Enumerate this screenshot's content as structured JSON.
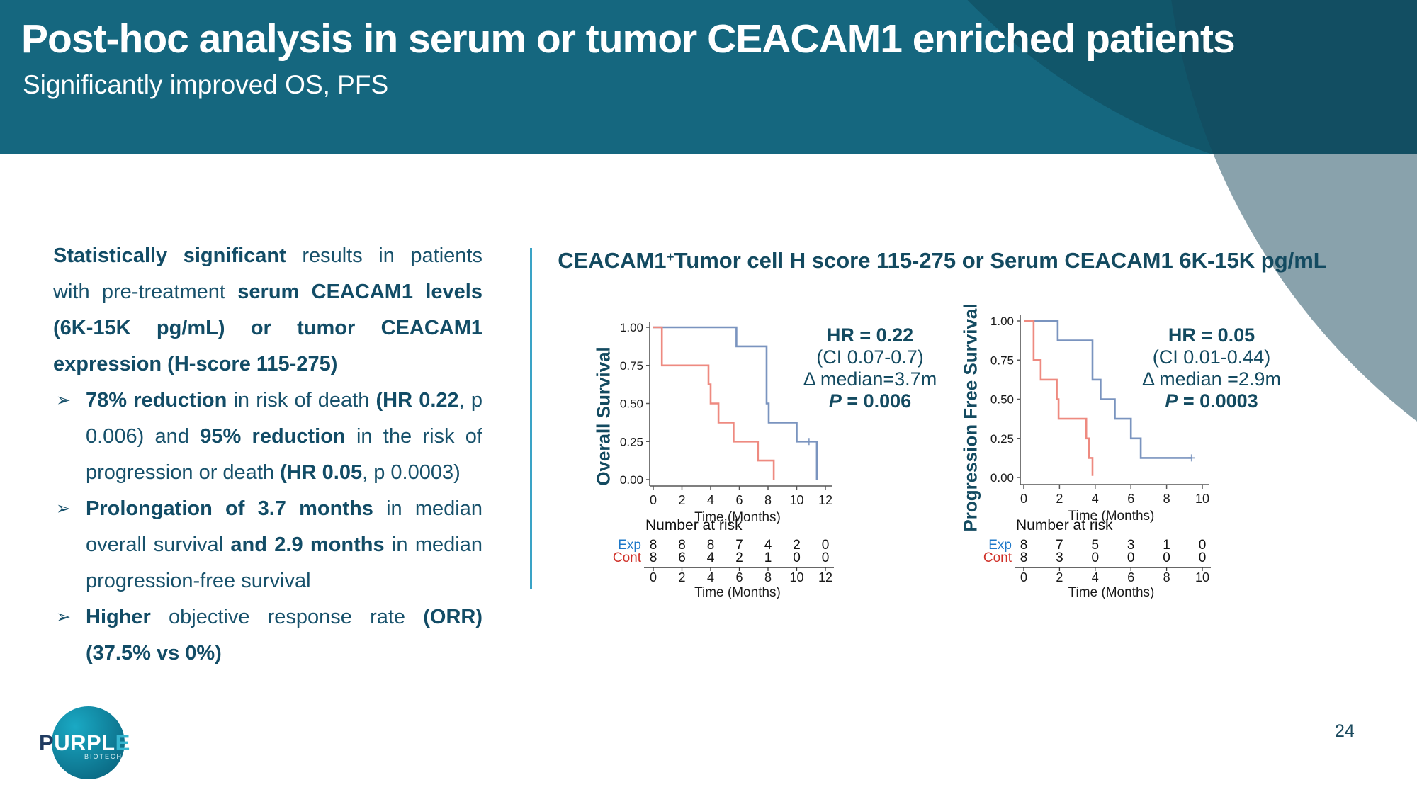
{
  "header": {
    "title": "Post-hoc analysis in serum or tumor CEACAM1 enriched patients",
    "subtitle": "Significantly improved OS, PFS"
  },
  "left_panel": {
    "bullet_glyph": "➢",
    "paragraph": [
      {
        "t": "Statistically significant",
        "b": true
      },
      {
        "t": " results in patients with pre-treatment "
      },
      {
        "t": "serum CEACAM1 levels (6K-15K pg/mL) or tumor CEACAM1 expression (H-score 115-275)",
        "b": true
      }
    ],
    "bullets": [
      [
        {
          "t": "78% reduction",
          "b": true
        },
        {
          "t": " in risk of death "
        },
        {
          "t": "(HR 0.22",
          "b": true
        },
        {
          "t": ", p 0.006) and "
        },
        {
          "t": "95% reduction",
          "b": true
        },
        {
          "t": " in the risk of progression or death "
        },
        {
          "t": "(HR 0.05",
          "b": true
        },
        {
          "t": ", p 0.0003)"
        }
      ],
      [
        {
          "t": "Prolongation of 3.7 months",
          "b": true
        },
        {
          "t": " in median overall survival "
        },
        {
          "t": "and 2.9 months",
          "b": true
        },
        {
          "t": " in median progression-free survival"
        }
      ],
      [
        {
          "t": "Higher",
          "b": true
        },
        {
          "t": " objective response rate "
        },
        {
          "t": "(ORR) (37.5% vs 0%)",
          "b": true
        }
      ]
    ]
  },
  "charts_header": {
    "prefix": "CEACAM1",
    "sup": "+",
    "rest": "Tumor cell H score 115-275 or Serum CEACAM1 6K-15K pg/mL"
  },
  "colors": {
    "header_teal": "#15677f",
    "body_text": "#17516b",
    "annotation_text": "#134a60",
    "divider": "#3aa3c6",
    "curve_exp": "#7a94bf",
    "curve_cont": "#ee8a80",
    "risk_exp_label": "#1e78c8",
    "risk_cont_label": "#cf2f27",
    "axis": "#555555",
    "axis_text": "#1a1a1a"
  },
  "chart_data": [
    {
      "type": "line",
      "subtype": "kaplan-meier-step",
      "ylabel": "Overall Survival",
      "xlabel": "Time (Months)",
      "xlim": [
        0,
        12
      ],
      "xticks": [
        0,
        2,
        4,
        6,
        8,
        10,
        12
      ],
      "ylim": [
        0,
        1
      ],
      "yticks": [
        "0.00",
        "0.25",
        "0.50",
        "0.75",
        "1.00"
      ],
      "grid": false,
      "series": [
        {
          "name": "Exp",
          "color": "#7a94bf",
          "points": [
            [
              0,
              1
            ],
            [
              5.8,
              1
            ],
            [
              5.8,
              0.875
            ],
            [
              7.9,
              0.875
            ],
            [
              7.9,
              0.5
            ],
            [
              8.05,
              0.5
            ],
            [
              8.05,
              0.375
            ],
            [
              10,
              0.375
            ],
            [
              10,
              0.25
            ],
            [
              11.4,
              0.25
            ],
            [
              11.4,
              0
            ]
          ],
          "censor_marks": [
            [
              10.85,
              0.25
            ]
          ]
        },
        {
          "name": "Cont",
          "color": "#ee8a80",
          "points": [
            [
              0,
              1
            ],
            [
              0.6,
              1
            ],
            [
              0.6,
              0.75
            ],
            [
              3.85,
              0.75
            ],
            [
              3.85,
              0.625
            ],
            [
              4.0,
              0.625
            ],
            [
              4.0,
              0.5
            ],
            [
              4.55,
              0.5
            ],
            [
              4.55,
              0.375
            ],
            [
              5.6,
              0.375
            ],
            [
              5.6,
              0.25
            ],
            [
              7.3,
              0.25
            ],
            [
              7.3,
              0.125
            ],
            [
              8.4,
              0.125
            ],
            [
              8.4,
              0
            ]
          ],
          "censor_marks": []
        }
      ],
      "annotation": [
        {
          "text": "HR = 0.22",
          "bold": true
        },
        {
          "text": "(CI 0.07-0.7)"
        },
        {
          "text": "Δ median=3.7m"
        },
        {
          "italic_lead": "P",
          "text": " = 0.006",
          "bold": true
        }
      ],
      "number_at_risk": {
        "label": "Number at risk",
        "xlabel": "Time (Months)",
        "xticks": [
          0,
          2,
          4,
          6,
          8,
          10,
          12
        ],
        "rows": [
          {
            "name": "Exp",
            "color": "#1e78c8",
            "values": [
              8,
              8,
              8,
              7,
              4,
              2,
              0
            ]
          },
          {
            "name": "Cont",
            "color": "#cf2f27",
            "values": [
              8,
              6,
              4,
              2,
              1,
              0,
              0
            ]
          }
        ]
      }
    },
    {
      "type": "line",
      "subtype": "kaplan-meier-step",
      "ylabel": "Progression Free Survival",
      "xlabel": "Time (Months)",
      "xlim": [
        0,
        10
      ],
      "xticks": [
        0,
        2,
        4,
        6,
        8,
        10
      ],
      "ylim": [
        0,
        1
      ],
      "yticks": [
        "0.00",
        "0.25",
        "0.50",
        "0.75",
        "1.00"
      ],
      "grid": false,
      "series": [
        {
          "name": "Exp",
          "color": "#7a94bf",
          "points": [
            [
              0,
              1
            ],
            [
              1.9,
              1
            ],
            [
              1.9,
              0.875
            ],
            [
              3.85,
              0.875
            ],
            [
              3.85,
              0.625
            ],
            [
              4.3,
              0.625
            ],
            [
              4.3,
              0.5
            ],
            [
              5.1,
              0.5
            ],
            [
              5.1,
              0.375
            ],
            [
              6.0,
              0.375
            ],
            [
              6.0,
              0.25
            ],
            [
              6.55,
              0.25
            ],
            [
              6.55,
              0.125
            ],
            [
              9.4,
              0.125
            ]
          ],
          "censor_marks": [
            [
              9.4,
              0.125
            ]
          ]
        },
        {
          "name": "Cont",
          "color": "#ee8a80",
          "points": [
            [
              0,
              1
            ],
            [
              0.55,
              1
            ],
            [
              0.55,
              0.75
            ],
            [
              0.95,
              0.75
            ],
            [
              0.95,
              0.625
            ],
            [
              1.85,
              0.625
            ],
            [
              1.85,
              0.5
            ],
            [
              1.95,
              0.5
            ],
            [
              1.95,
              0.375
            ],
            [
              3.5,
              0.375
            ],
            [
              3.5,
              0.25
            ],
            [
              3.65,
              0.25
            ],
            [
              3.65,
              0.125
            ],
            [
              3.85,
              0.125
            ],
            [
              3.85,
              0.01
            ]
          ],
          "censor_marks": []
        }
      ],
      "annotation": [
        {
          "text": "HR = 0.05",
          "bold": true
        },
        {
          "text": "(CI 0.01-0.44)"
        },
        {
          "text": "Δ median =2.9m"
        },
        {
          "italic_lead": "P",
          "text": " = 0.0003",
          "bold": true
        }
      ],
      "number_at_risk": {
        "label": "Number at risk",
        "xlabel": "Time (Months)",
        "xticks": [
          0,
          2,
          4,
          6,
          8,
          10
        ],
        "rows": [
          {
            "name": "Exp",
            "color": "#1e78c8",
            "values": [
              8,
              7,
              5,
              3,
              1,
              0
            ]
          },
          {
            "name": "Cont",
            "color": "#cf2f27",
            "values": [
              8,
              3,
              0,
              0,
              0,
              0
            ]
          }
        ]
      }
    }
  ],
  "logo": {
    "word_p1": "P",
    "word_p2": "URPL",
    "word_p3": "E",
    "sub": "BIOTECH"
  },
  "page_number": "24"
}
